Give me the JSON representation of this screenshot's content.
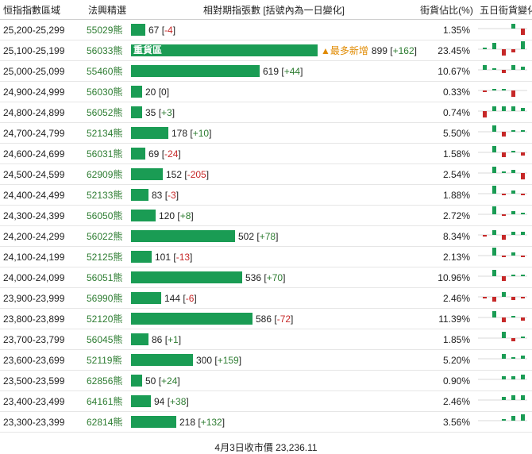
{
  "headers": {
    "range": "恒指指數區域",
    "code": "法興精選",
    "bar": "相對期指張數 [括號內為一日變化]",
    "pct": "街貨佔比(%)",
    "spark": "五日街貨變化"
  },
  "bar_max": 899,
  "colors": {
    "bar": "#1a9c54",
    "positive": "#2e7d32",
    "negative": "#c62828",
    "tag": "#e08a00"
  },
  "rows": [
    {
      "range": "25,200-25,299",
      "code": "55029熊",
      "value": 67,
      "change": "-4",
      "pct": "1.35%",
      "spark": [
        0,
        0,
        0,
        3,
        -4
      ]
    },
    {
      "range": "25,100-25,199",
      "code": "56033熊",
      "value": 899,
      "change": "+162",
      "pct": "23.45%",
      "in_bar": "重貨區",
      "tag": "▲最多新增",
      "spark": [
        1,
        4,
        -4,
        -2,
        5
      ]
    },
    {
      "range": "25,000-25,099",
      "code": "55460熊",
      "value": 619,
      "change": "+44",
      "pct": "10.67%",
      "spark": [
        3,
        1,
        -2,
        3,
        2
      ]
    },
    {
      "range": "24,900-24,999",
      "code": "56030熊",
      "value": 20,
      "change": "0",
      "pct": "0.33%",
      "spark": [
        -1,
        1,
        1,
        -4,
        0
      ]
    },
    {
      "range": "24,800-24,899",
      "code": "56052熊",
      "value": 35,
      "change": "+3",
      "pct": "0.74%",
      "spark": [
        -4,
        3,
        3,
        3,
        2
      ]
    },
    {
      "range": "24,700-24,799",
      "code": "52134熊",
      "value": 178,
      "change": "+10",
      "pct": "5.50%",
      "spark": [
        0,
        4,
        -3,
        1,
        1
      ]
    },
    {
      "range": "24,600-24,699",
      "code": "56031熊",
      "value": 69,
      "change": "-24",
      "pct": "1.58%",
      "spark": [
        0,
        4,
        -3,
        1,
        -2
      ]
    },
    {
      "range": "24,500-24,599",
      "code": "62909熊",
      "value": 152,
      "change": "-205",
      "pct": "2.54%",
      "spark": [
        0,
        4,
        1,
        2,
        -4
      ]
    },
    {
      "range": "24,400-24,499",
      "code": "52133熊",
      "value": 83,
      "change": "-3",
      "pct": "1.88%",
      "spark": [
        0,
        5,
        -1,
        2,
        -1
      ]
    },
    {
      "range": "24,300-24,399",
      "code": "56050熊",
      "value": 120,
      "change": "+8",
      "pct": "2.72%",
      "spark": [
        0,
        5,
        -1,
        2,
        1
      ]
    },
    {
      "range": "24,200-24,299",
      "code": "56022熊",
      "value": 502,
      "change": "+78",
      "pct": "8.34%",
      "spark": [
        -1,
        3,
        -3,
        2,
        2
      ]
    },
    {
      "range": "24,100-24,199",
      "code": "52125熊",
      "value": 101,
      "change": "-13",
      "pct": "2.13%",
      "spark": [
        0,
        5,
        -1,
        2,
        -1
      ]
    },
    {
      "range": "24,000-24,099",
      "code": "56051熊",
      "value": 536,
      "change": "+70",
      "pct": "10.96%",
      "spark": [
        0,
        4,
        -3,
        1,
        1
      ]
    },
    {
      "range": "23,900-23,999",
      "code": "56990熊",
      "value": 144,
      "change": "-6",
      "pct": "2.46%",
      "spark": [
        -1,
        -3,
        3,
        -2,
        -1
      ]
    },
    {
      "range": "23,800-23,899",
      "code": "52120熊",
      "value": 586,
      "change": "-72",
      "pct": "11.39%",
      "spark": [
        0,
        4,
        -3,
        1,
        -2
      ]
    },
    {
      "range": "23,700-23,799",
      "code": "56045熊",
      "value": 86,
      "change": "+1",
      "pct": "1.85%",
      "spark": [
        0,
        0,
        4,
        -2,
        1
      ]
    },
    {
      "range": "23,600-23,699",
      "code": "52119熊",
      "value": 300,
      "change": "+159",
      "pct": "5.20%",
      "spark": [
        0,
        0,
        3,
        1,
        2
      ]
    },
    {
      "range": "23,500-23,599",
      "code": "62856熊",
      "value": 50,
      "change": "+24",
      "pct": "0.90%",
      "spark": [
        0,
        0,
        2,
        2,
        3
      ]
    },
    {
      "range": "23,400-23,499",
      "code": "64161熊",
      "value": 94,
      "change": "+38",
      "pct": "2.46%",
      "spark": [
        0,
        0,
        2,
        3,
        3
      ]
    },
    {
      "range": "23,300-23,399",
      "code": "62814熊",
      "value": 218,
      "change": "+132",
      "pct": "3.56%",
      "spark": [
        0,
        0,
        1,
        3,
        4
      ]
    }
  ],
  "footer": "4月3日收市價 23,236.11"
}
